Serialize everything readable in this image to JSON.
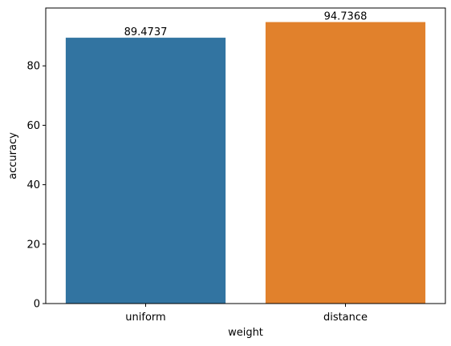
{
  "chart_data": {
    "type": "bar",
    "categories": [
      "uniform",
      "distance"
    ],
    "values": [
      89.4737,
      94.7368
    ],
    "data_labels": [
      "89.4737",
      "94.7368"
    ],
    "colors": [
      "#3274a1",
      "#e1812c"
    ],
    "title": "",
    "xlabel": "weight",
    "ylabel": "accuracy",
    "ylim": [
      0,
      99.47
    ],
    "yticks": [
      0,
      20,
      40,
      60,
      80
    ],
    "grid": false,
    "legend": "none"
  }
}
